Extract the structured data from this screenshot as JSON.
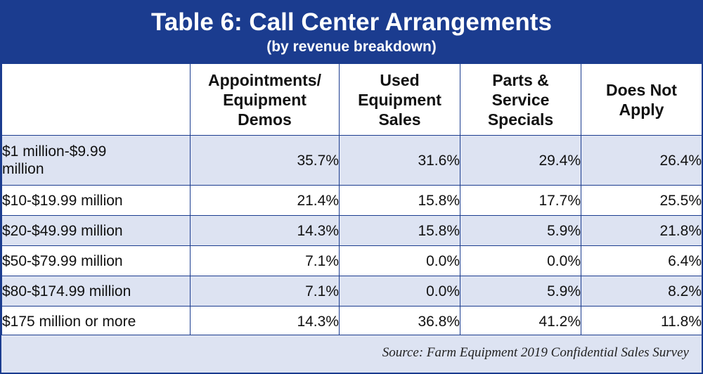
{
  "chart_data": {
    "type": "table",
    "title": "Table 6: Call Center Arrangements",
    "subtitle": "(by revenue breakdown)",
    "columns": [
      [
        "Appointments/",
        "Equipment",
        "Demos"
      ],
      [
        "Used",
        "Equipment",
        "Sales"
      ],
      [
        "Parts &",
        "Service",
        "Specials"
      ],
      [
        "Does Not",
        "Apply"
      ]
    ],
    "rows": [
      {
        "label": [
          "$1 million-$9.99",
          "million"
        ],
        "values": [
          "35.7%",
          "31.6%",
          "29.4%",
          "26.4%"
        ]
      },
      {
        "label": [
          "$10-$19.99 million"
        ],
        "values": [
          "21.4%",
          "15.8%",
          "17.7%",
          "25.5%"
        ]
      },
      {
        "label": [
          "$20-$49.99 million"
        ],
        "values": [
          "14.3%",
          "15.8%",
          "5.9%",
          "21.8%"
        ]
      },
      {
        "label": [
          "$50-$79.99 million"
        ],
        "values": [
          "7.1%",
          "0.0%",
          "0.0%",
          "6.4%"
        ]
      },
      {
        "label": [
          "$80-$174.99 million"
        ],
        "values": [
          "7.1%",
          "0.0%",
          "5.9%",
          "8.2%"
        ]
      },
      {
        "label": [
          "$175 million or more"
        ],
        "values": [
          "14.3%",
          "36.8%",
          "41.2%",
          "11.8%"
        ]
      }
    ],
    "source": "Source: Farm Equipment 2019 Confidential Sales Survey"
  },
  "colors": {
    "header_bg": "#1b3c8f",
    "stripe_bg": "#dde3f2",
    "text": "#111111"
  }
}
